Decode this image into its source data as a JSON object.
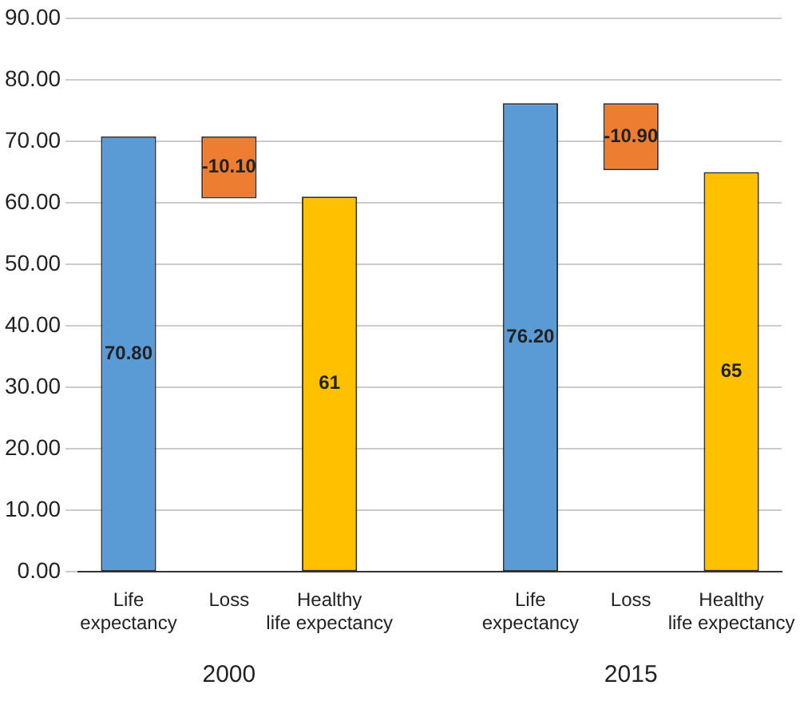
{
  "chart_data": {
    "type": "bar",
    "categories": [
      "Life expectancy",
      "Loss",
      "Healthy life expectancy",
      null,
      "Life expectancy",
      "Loss",
      "Healthy life expectancy"
    ],
    "values": [
      70.8,
      -10.1,
      61,
      null,
      76.2,
      -10.9,
      65
    ],
    "base": [
      0,
      70.8,
      0,
      null,
      0,
      76.2,
      0
    ],
    "colors": [
      "#5b9bd5",
      "#ed7d31",
      "#ffc000",
      "#ffffff",
      "#5b9bd5",
      "#ed7d31",
      "#ffc000"
    ],
    "value_labels": [
      "70.80",
      "-10.10",
      "61",
      null,
      "76.20",
      "-10.90",
      "65"
    ],
    "ylim": [
      0,
      90
    ],
    "yticks": [
      {
        "value": 0,
        "label": "0.00"
      },
      {
        "value": 10,
        "label": "10.00"
      },
      {
        "value": 20,
        "label": "20.00"
      },
      {
        "value": 30,
        "label": "30.00"
      },
      {
        "value": 40,
        "label": "40.00"
      },
      {
        "value": 50,
        "label": "50.00"
      },
      {
        "value": 60,
        "label": "60.00"
      },
      {
        "value": 70,
        "label": "70.00"
      },
      {
        "value": 80,
        "label": "80.00"
      },
      {
        "value": 90,
        "label": "90.00"
      }
    ],
    "grid": "y",
    "annotations": [
      "2000",
      "2015"
    ]
  }
}
